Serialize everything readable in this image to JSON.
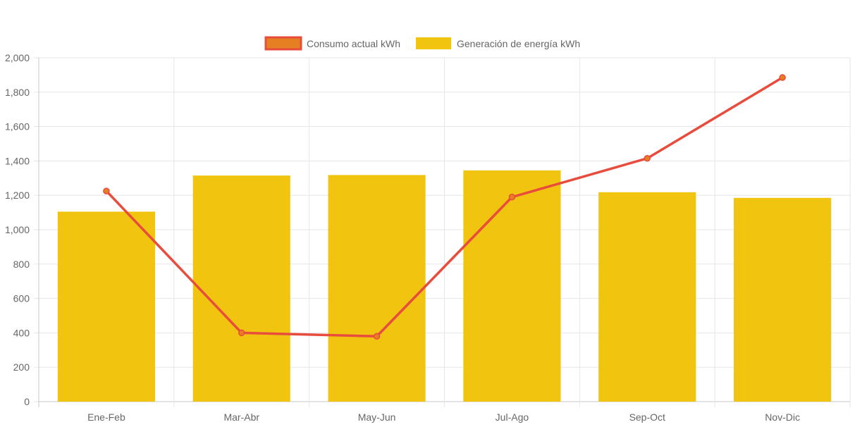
{
  "chart_data": {
    "type": "bar",
    "categories": [
      "Ene-Feb",
      "Mar-Abr",
      "May-Jun",
      "Jul-Ago",
      "Sep-Oct",
      "Nov-Dic"
    ],
    "series": [
      {
        "name": "Consumo actual kWh",
        "type": "line",
        "values": [
          1225,
          400,
          380,
          1190,
          1415,
          1885
        ],
        "color": "#e74c3c",
        "point_color": "#e67e22"
      },
      {
        "name": "Generación de energía kWh",
        "type": "bar",
        "values": [
          1105,
          1315,
          1318,
          1345,
          1218,
          1185
        ],
        "color": "#f1c40f"
      }
    ],
    "yticks": [
      "0",
      "200",
      "400",
      "600",
      "800",
      "1,000",
      "1,200",
      "1,400",
      "1,600",
      "1,800",
      "2,000"
    ],
    "ylim": [
      0,
      2000
    ],
    "grid": true,
    "legend_position": "top-center",
    "title": "",
    "xlabel": "",
    "ylabel": ""
  }
}
